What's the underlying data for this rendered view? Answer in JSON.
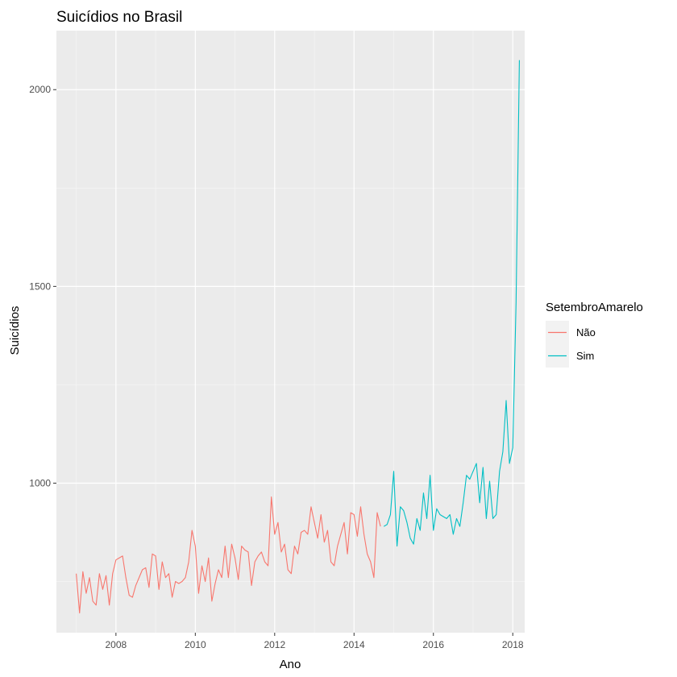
{
  "chart_data": {
    "type": "line",
    "title": "Suicídios no Brasil",
    "xlabel": "Ano",
    "ylabel": "Suicídios",
    "xlim": [
      2006.5,
      2018.3
    ],
    "ylim": [
      620,
      2150
    ],
    "x_ticks": [
      {
        "value": 2008,
        "label": "2008"
      },
      {
        "value": 2010,
        "label": "2010"
      },
      {
        "value": 2012,
        "label": "2012"
      },
      {
        "value": 2014,
        "label": "2014"
      },
      {
        "value": 2016,
        "label": "2016"
      },
      {
        "value": 2018,
        "label": "2018"
      }
    ],
    "y_ticks": [
      {
        "value": 1000,
        "label": "1000"
      },
      {
        "value": 1500,
        "label": "1500"
      },
      {
        "value": 2000,
        "label": "2000"
      }
    ],
    "grid": true,
    "legend": {
      "title": "SetembroAmarelo",
      "position": "right"
    },
    "series": [
      {
        "name": "Não",
        "color": "#f8766d",
        "x_start": 2007.0,
        "x_step": 0.0833333,
        "values": [
          770,
          670,
          775,
          720,
          760,
          700,
          690,
          770,
          730,
          765,
          690,
          770,
          805,
          810,
          815,
          760,
          715,
          710,
          740,
          760,
          780,
          785,
          735,
          820,
          815,
          730,
          800,
          760,
          770,
          710,
          750,
          745,
          750,
          760,
          800,
          880,
          840,
          720,
          790,
          750,
          810,
          700,
          745,
          780,
          760,
          840,
          760,
          845,
          810,
          755,
          840,
          830,
          825,
          740,
          800,
          815,
          825,
          800,
          790,
          965,
          870,
          900,
          825,
          845,
          780,
          770,
          840,
          820,
          875,
          880,
          870,
          940,
          900,
          860,
          920,
          850,
          880,
          800,
          790,
          840,
          870,
          900,
          820,
          925,
          920,
          865,
          940,
          870,
          820,
          800,
          760,
          925,
          890
        ]
      },
      {
        "name": "Sim",
        "color": "#00bfc4",
        "x_start": 2014.75,
        "x_step": 0.0833333,
        "values": [
          890,
          895,
          920,
          1030,
          840,
          940,
          930,
          900,
          860,
          845,
          910,
          880,
          975,
          910,
          1020,
          880,
          935,
          920,
          915,
          910,
          920,
          870,
          910,
          890,
          950,
          1020,
          1010,
          1030,
          1050,
          950,
          1040,
          910,
          1005,
          910,
          920,
          1030,
          1080,
          1210,
          1050,
          1090,
          1460,
          2075
        ]
      }
    ]
  }
}
